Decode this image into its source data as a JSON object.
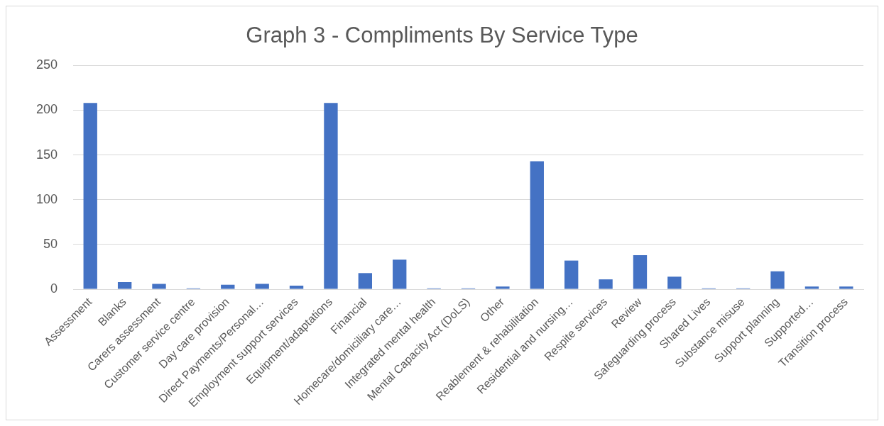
{
  "chart_data": {
    "type": "bar",
    "title": "Graph 3 - Compliments By Service Type",
    "categories": [
      "Assessment",
      "Blanks",
      "Carers assessment",
      "Customer service centre",
      "Day care provision",
      "Direct Payments/Personal…",
      "Employment support services",
      "Equipment/adaptations",
      "Financial",
      "Homecare/domiciliary care…",
      "Integrated mental health",
      "Mental Capacity Act (DoLS)",
      "Other",
      "Reablement & rehabilitation",
      "Residential and nursing…",
      "Respite services",
      "Review",
      "Safeguarding process",
      "Shared Lives",
      "Substance misuse",
      "Support planning",
      "Supported…",
      "Transition process"
    ],
    "values": [
      208,
      8,
      6,
      1,
      5,
      6,
      4,
      208,
      18,
      33,
      1,
      1,
      3,
      143,
      32,
      11,
      38,
      14,
      1,
      1,
      20,
      3,
      3
    ],
    "color": "#4472c4",
    "ylim": [
      0,
      250
    ],
    "yticks": [
      0,
      50,
      100,
      150,
      200,
      250
    ],
    "grid": "y",
    "legend": false
  }
}
